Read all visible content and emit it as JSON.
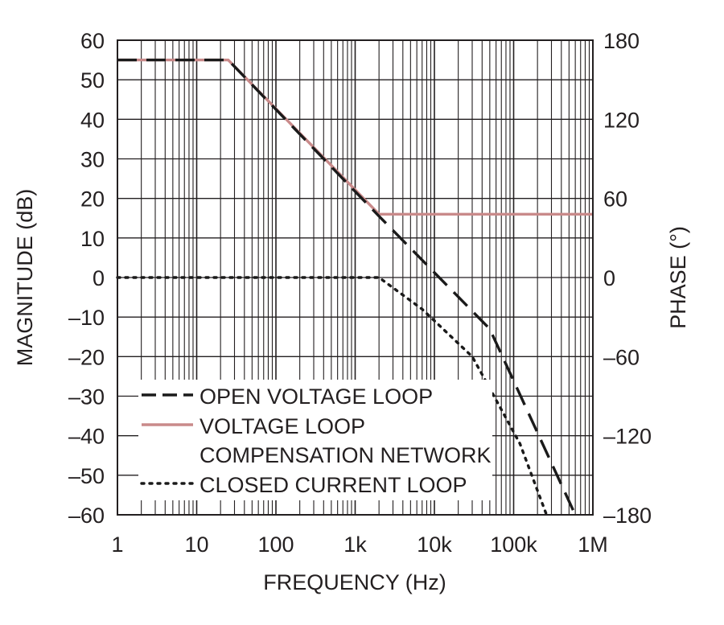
{
  "chart_data": {
    "type": "line",
    "x_scale": "log",
    "xlabel": "FREQUENCY (Hz)",
    "ylabel": "MAGNITUDE (dB)",
    "y2label": "PHASE (°)",
    "xlim": [
      1,
      1000000
    ],
    "ylim": [
      -60,
      60
    ],
    "y2lim": [
      -180,
      180
    ],
    "grid": true,
    "legend_position": "bottom-left",
    "x_ticks": [
      {
        "value": 1,
        "label": "1"
      },
      {
        "value": 10,
        "label": "10"
      },
      {
        "value": 100,
        "label": "100"
      },
      {
        "value": 1000,
        "label": "1k"
      },
      {
        "value": 10000,
        "label": "10k"
      },
      {
        "value": 100000,
        "label": "100k"
      },
      {
        "value": 1000000,
        "label": "1M"
      }
    ],
    "y_ticks": [
      {
        "value": 60,
        "label": "60"
      },
      {
        "value": 50,
        "label": "50"
      },
      {
        "value": 40,
        "label": "40"
      },
      {
        "value": 30,
        "label": "30"
      },
      {
        "value": 20,
        "label": "20"
      },
      {
        "value": 10,
        "label": "10"
      },
      {
        "value": 0,
        "label": "0"
      },
      {
        "value": -10,
        "label": "–10"
      },
      {
        "value": -20,
        "label": "–20"
      },
      {
        "value": -30,
        "label": "–30"
      },
      {
        "value": -40,
        "label": "–40"
      },
      {
        "value": -50,
        "label": "–50"
      },
      {
        "value": -60,
        "label": "–60"
      }
    ],
    "y2_ticks": [
      {
        "value": 180,
        "label": "180"
      },
      {
        "value": 120,
        "label": "120"
      },
      {
        "value": 60,
        "label": "60"
      },
      {
        "value": 0,
        "label": "0"
      },
      {
        "value": -60,
        "label": "–60"
      },
      {
        "value": -120,
        "label": "–120"
      },
      {
        "value": -180,
        "label": "–180"
      }
    ],
    "series": [
      {
        "name": "OPEN VOLTAGE LOOP",
        "style": "dashed",
        "color": "#1a1a1a",
        "points": [
          [
            1,
            55
          ],
          [
            25,
            55
          ],
          [
            2000,
            15.5
          ],
          [
            50000,
            -13
          ],
          [
            600000,
            -60
          ]
        ]
      },
      {
        "name": "VOLTAGE LOOP COMPENSATION NETWORK",
        "style": "solid",
        "color": "#c98a8a",
        "points": [
          [
            1,
            55
          ],
          [
            25,
            55
          ],
          [
            2000,
            16
          ],
          [
            1000000,
            16
          ]
        ]
      },
      {
        "name": "CLOSED CURRENT LOOP",
        "style": "dotted",
        "color": "#1a1a1a",
        "points": [
          [
            1,
            0
          ],
          [
            2000,
            0
          ],
          [
            7000,
            -8
          ],
          [
            30000,
            -20
          ],
          [
            50000,
            -28
          ],
          [
            120000,
            -42
          ],
          [
            260000,
            -60
          ]
        ]
      }
    ],
    "legend": [
      {
        "lines": [
          "OPEN VOLTAGE LOOP"
        ],
        "style": "dashed",
        "color": "#1a1a1a"
      },
      {
        "lines": [
          "VOLTAGE LOOP",
          "COMPENSATION NETWORK"
        ],
        "style": "solid",
        "color": "#c98a8a"
      },
      {
        "lines": [
          "CLOSED CURRENT LOOP"
        ],
        "style": "dotted",
        "color": "#1a1a1a"
      }
    ]
  }
}
